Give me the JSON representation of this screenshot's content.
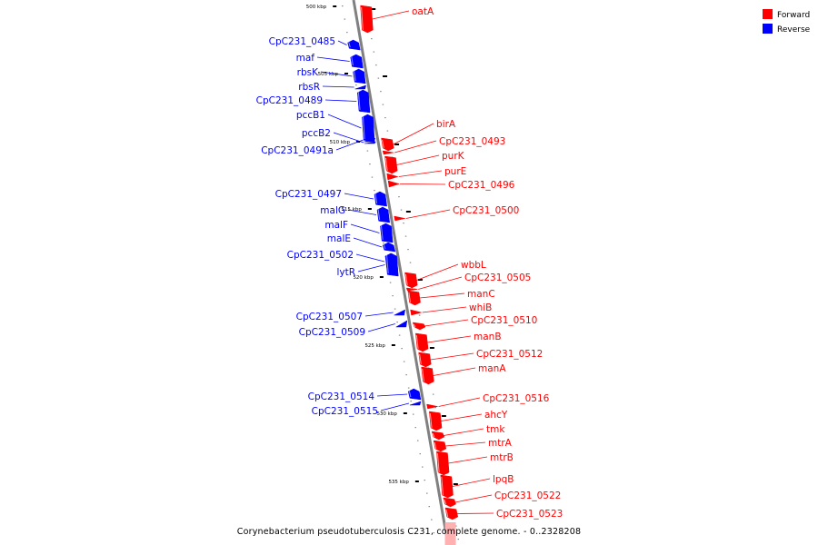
{
  "caption": "Corynebacterium pseudotuberculosis C231, complete genome. - 0..2328208",
  "legend": [
    {
      "label": "Forward",
      "color": "#ff0000"
    },
    {
      "label": "Reverse",
      "color": "#0000ff"
    }
  ],
  "colors": {
    "forward": "#ff0000",
    "reverse": "#0000ff",
    "backbone": "#808080"
  },
  "ticks": [
    "500 kbp",
    "505 kbp",
    "510 kbp",
    "515 kbp",
    "520 kbp",
    "525 kbp",
    "530 kbp",
    "535 kbp"
  ],
  "genes": [
    {
      "name": "oatA",
      "strand": "forward"
    },
    {
      "name": "CpC231_0485",
      "strand": "reverse"
    },
    {
      "name": "maf",
      "strand": "reverse"
    },
    {
      "name": "rbsK",
      "strand": "reverse"
    },
    {
      "name": "rbsR",
      "strand": "reverse"
    },
    {
      "name": "CpC231_0489",
      "strand": "reverse"
    },
    {
      "name": "pccB1",
      "strand": "reverse"
    },
    {
      "name": "pccB2",
      "strand": "reverse"
    },
    {
      "name": "CpC231_0491a",
      "strand": "reverse"
    },
    {
      "name": "birA",
      "strand": "forward"
    },
    {
      "name": "CpC231_0493",
      "strand": "forward"
    },
    {
      "name": "purK",
      "strand": "forward"
    },
    {
      "name": "purE",
      "strand": "forward"
    },
    {
      "name": "CpC231_0496",
      "strand": "forward"
    },
    {
      "name": "CpC231_0497",
      "strand": "reverse"
    },
    {
      "name": "malG",
      "strand": "reverse"
    },
    {
      "name": "malF",
      "strand": "reverse"
    },
    {
      "name": "malE",
      "strand": "reverse"
    },
    {
      "name": "CpC231_0502",
      "strand": "reverse"
    },
    {
      "name": "lytR",
      "strand": "reverse"
    },
    {
      "name": "CpC231_0500",
      "strand": "forward"
    },
    {
      "name": "wbbL",
      "strand": "forward"
    },
    {
      "name": "CpC231_0505",
      "strand": "forward"
    },
    {
      "name": "manC",
      "strand": "forward"
    },
    {
      "name": "whiB",
      "strand": "forward"
    },
    {
      "name": "CpC231_0510",
      "strand": "forward"
    },
    {
      "name": "manB",
      "strand": "forward"
    },
    {
      "name": "CpC231_0512",
      "strand": "forward"
    },
    {
      "name": "manA",
      "strand": "forward"
    },
    {
      "name": "CpC231_0507",
      "strand": "reverse"
    },
    {
      "name": "CpC231_0509",
      "strand": "reverse"
    },
    {
      "name": "CpC231_0514",
      "strand": "reverse"
    },
    {
      "name": "CpC231_0515",
      "strand": "reverse"
    },
    {
      "name": "CpC231_0516",
      "strand": "forward"
    },
    {
      "name": "ahcY",
      "strand": "forward"
    },
    {
      "name": "tmk",
      "strand": "forward"
    },
    {
      "name": "mtrA",
      "strand": "forward"
    },
    {
      "name": "mtrB",
      "strand": "forward"
    },
    {
      "name": "lpqB",
      "strand": "forward"
    },
    {
      "name": "CpC231_0522",
      "strand": "forward"
    },
    {
      "name": "CpC231_0523",
      "strand": "forward"
    }
  ]
}
